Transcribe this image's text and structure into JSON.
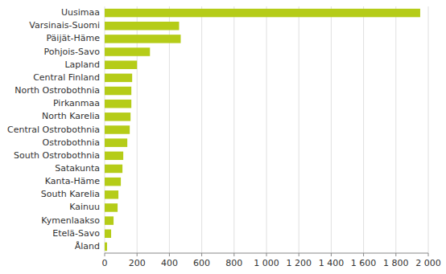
{
  "chart_data": {
    "type": "bar",
    "orientation": "horizontal",
    "categories": [
      "Uusimaa",
      "Varsinais-Suomi",
      "Päijät-Häme",
      "Pohjois-Savo",
      "Lapland",
      "Central Finland",
      "North Ostrobothnia",
      "Pirkanmaa",
      "North Karelia",
      "Central Ostrobothnia",
      "Ostrobothnia",
      "South Ostrobothnia",
      "Satakunta",
      "Kanta-Häme",
      "South Karelia",
      "Kainuu",
      "Kymenlaakso",
      "Etelä-Savo",
      "Åland"
    ],
    "values": [
      1950,
      460,
      470,
      280,
      200,
      170,
      165,
      165,
      160,
      155,
      140,
      115,
      110,
      100,
      85,
      80,
      55,
      40,
      15
    ],
    "color": "#b5cc18",
    "xlim": [
      0,
      2000
    ],
    "xticks": [
      0,
      200,
      400,
      600,
      800,
      {
        "value": 1000,
        "label": "1 000"
      },
      {
        "value": 1200,
        "label": "1 200"
      },
      {
        "value": 1400,
        "label": "1 400"
      },
      {
        "value": 1600,
        "label": "1 600"
      },
      {
        "value": 1800,
        "label": "1 800"
      },
      {
        "value": 2000,
        "label": "2 000"
      }
    ],
    "grid": true
  }
}
